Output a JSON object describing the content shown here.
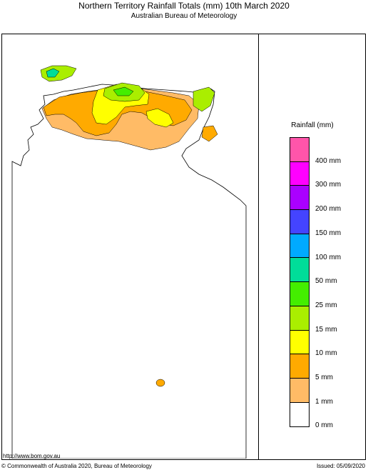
{
  "header": {
    "title": "Northern Territory Rainfall Totals (mm) 10th March 2020",
    "subtitle": "Australian Bureau of Meteorology"
  },
  "legend": {
    "title": "Rainfall (mm)",
    "bands": [
      {
        "color": "#ff55aa"
      },
      {
        "color": "#ff00ff"
      },
      {
        "color": "#aa00ff"
      },
      {
        "color": "#4444ff"
      },
      {
        "color": "#00aaff"
      },
      {
        "color": "#00dd99"
      },
      {
        "color": "#44ee00"
      },
      {
        "color": "#aaee00"
      },
      {
        "color": "#ffff00"
      },
      {
        "color": "#ffaa00"
      },
      {
        "color": "#ffbb66"
      },
      {
        "color": "#ffffff"
      }
    ],
    "labels": [
      "400 mm",
      "300 mm",
      "200 mm",
      "150 mm",
      "100 mm",
      "50 mm",
      "25 mm",
      "15 mm",
      "10 mm",
      "5 mm",
      "1 mm",
      "0 mm"
    ]
  },
  "footer": {
    "url": "http://www.bom.gov.au",
    "copyright": "© Commonwealth of Australia 2020, Bureau of Meteorology",
    "issued": "Issued: 05/09/2020"
  }
}
